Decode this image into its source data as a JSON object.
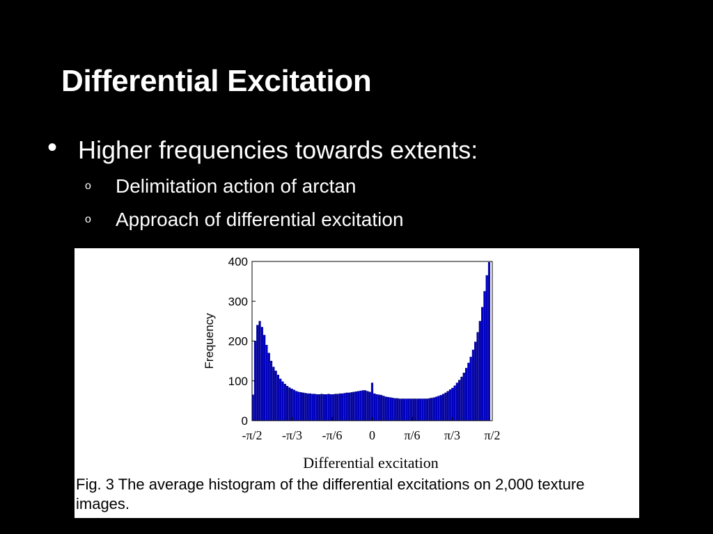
{
  "slide": {
    "title": "Differential Excitation",
    "bullet": "Higher frequencies towards extents:",
    "bullet_marker": "•",
    "sub_marker": "o",
    "sub_bullets": [
      "Delimitation action of arctan",
      "Approach of differential excitation"
    ]
  },
  "figure": {
    "caption": "Fig. 3 The average histogram of the differential excitations on 2,000 texture images."
  },
  "chart_data": {
    "type": "bar",
    "xlabel": "Differential excitation",
    "ylabel": "Frequency",
    "ylim": [
      0,
      400
    ],
    "yticks": [
      0,
      100,
      200,
      300,
      400
    ],
    "xtick_labels": [
      "-π/2",
      "-π/3",
      "-π/6",
      "0",
      "π/6",
      "π/3",
      "π/2"
    ],
    "xlim": [
      -1.5708,
      1.5708
    ],
    "bar_color": "#0000c8",
    "grid": false,
    "bins": [
      {
        "x": -1.56,
        "v": 65
      },
      {
        "x": -1.53,
        "v": 200
      },
      {
        "x": -1.5,
        "v": 240
      },
      {
        "x": -1.47,
        "v": 250
      },
      {
        "x": -1.44,
        "v": 235
      },
      {
        "x": -1.41,
        "v": 215
      },
      {
        "x": -1.38,
        "v": 190
      },
      {
        "x": -1.35,
        "v": 170
      },
      {
        "x": -1.32,
        "v": 150
      },
      {
        "x": -1.29,
        "v": 135
      },
      {
        "x": -1.26,
        "v": 125
      },
      {
        "x": -1.23,
        "v": 115
      },
      {
        "x": -1.2,
        "v": 105
      },
      {
        "x": -1.17,
        "v": 98
      },
      {
        "x": -1.14,
        "v": 92
      },
      {
        "x": -1.11,
        "v": 87
      },
      {
        "x": -1.08,
        "v": 83
      },
      {
        "x": -1.05,
        "v": 80
      },
      {
        "x": -1.02,
        "v": 77
      },
      {
        "x": -0.99,
        "v": 74
      },
      {
        "x": -0.96,
        "v": 72
      },
      {
        "x": -0.93,
        "v": 71
      },
      {
        "x": -0.9,
        "v": 70
      },
      {
        "x": -0.87,
        "v": 69
      },
      {
        "x": -0.84,
        "v": 68
      },
      {
        "x": -0.81,
        "v": 68
      },
      {
        "x": -0.78,
        "v": 67
      },
      {
        "x": -0.75,
        "v": 67
      },
      {
        "x": -0.72,
        "v": 66
      },
      {
        "x": -0.69,
        "v": 66
      },
      {
        "x": -0.66,
        "v": 67
      },
      {
        "x": -0.63,
        "v": 66
      },
      {
        "x": -0.6,
        "v": 66
      },
      {
        "x": -0.57,
        "v": 67
      },
      {
        "x": -0.54,
        "v": 66
      },
      {
        "x": -0.51,
        "v": 66
      },
      {
        "x": -0.48,
        "v": 67
      },
      {
        "x": -0.45,
        "v": 67
      },
      {
        "x": -0.42,
        "v": 68
      },
      {
        "x": -0.39,
        "v": 68
      },
      {
        "x": -0.36,
        "v": 69
      },
      {
        "x": -0.33,
        "v": 70
      },
      {
        "x": -0.3,
        "v": 70
      },
      {
        "x": -0.27,
        "v": 71
      },
      {
        "x": -0.24,
        "v": 72
      },
      {
        "x": -0.21,
        "v": 73
      },
      {
        "x": -0.18,
        "v": 74
      },
      {
        "x": -0.15,
        "v": 75
      },
      {
        "x": -0.12,
        "v": 76
      },
      {
        "x": -0.09,
        "v": 76
      },
      {
        "x": -0.06,
        "v": 74
      },
      {
        "x": -0.03,
        "v": 72
      },
      {
        "x": 0.0,
        "v": 95
      },
      {
        "x": 0.03,
        "v": 68
      },
      {
        "x": 0.06,
        "v": 66
      },
      {
        "x": 0.09,
        "v": 65
      },
      {
        "x": 0.12,
        "v": 64
      },
      {
        "x": 0.15,
        "v": 62
      },
      {
        "x": 0.18,
        "v": 60
      },
      {
        "x": 0.21,
        "v": 59
      },
      {
        "x": 0.24,
        "v": 58
      },
      {
        "x": 0.27,
        "v": 57
      },
      {
        "x": 0.3,
        "v": 56
      },
      {
        "x": 0.33,
        "v": 56
      },
      {
        "x": 0.36,
        "v": 55
      },
      {
        "x": 0.39,
        "v": 55
      },
      {
        "x": 0.42,
        "v": 55
      },
      {
        "x": 0.45,
        "v": 55
      },
      {
        "x": 0.48,
        "v": 55
      },
      {
        "x": 0.51,
        "v": 55
      },
      {
        "x": 0.54,
        "v": 55
      },
      {
        "x": 0.57,
        "v": 55
      },
      {
        "x": 0.6,
        "v": 55
      },
      {
        "x": 0.63,
        "v": 55
      },
      {
        "x": 0.66,
        "v": 55
      },
      {
        "x": 0.69,
        "v": 55
      },
      {
        "x": 0.72,
        "v": 55
      },
      {
        "x": 0.75,
        "v": 56
      },
      {
        "x": 0.78,
        "v": 57
      },
      {
        "x": 0.81,
        "v": 58
      },
      {
        "x": 0.84,
        "v": 60
      },
      {
        "x": 0.87,
        "v": 62
      },
      {
        "x": 0.9,
        "v": 64
      },
      {
        "x": 0.93,
        "v": 67
      },
      {
        "x": 0.96,
        "v": 70
      },
      {
        "x": 0.99,
        "v": 74
      },
      {
        "x": 1.02,
        "v": 78
      },
      {
        "x": 1.05,
        "v": 82
      },
      {
        "x": 1.08,
        "v": 88
      },
      {
        "x": 1.11,
        "v": 95
      },
      {
        "x": 1.14,
        "v": 102
      },
      {
        "x": 1.17,
        "v": 110
      },
      {
        "x": 1.2,
        "v": 120
      },
      {
        "x": 1.23,
        "v": 132
      },
      {
        "x": 1.26,
        "v": 145
      },
      {
        "x": 1.29,
        "v": 160
      },
      {
        "x": 1.32,
        "v": 178
      },
      {
        "x": 1.35,
        "v": 198
      },
      {
        "x": 1.38,
        "v": 222
      },
      {
        "x": 1.41,
        "v": 250
      },
      {
        "x": 1.44,
        "v": 285
      },
      {
        "x": 1.47,
        "v": 325
      },
      {
        "x": 1.5,
        "v": 365
      },
      {
        "x": 1.53,
        "v": 398
      }
    ]
  }
}
